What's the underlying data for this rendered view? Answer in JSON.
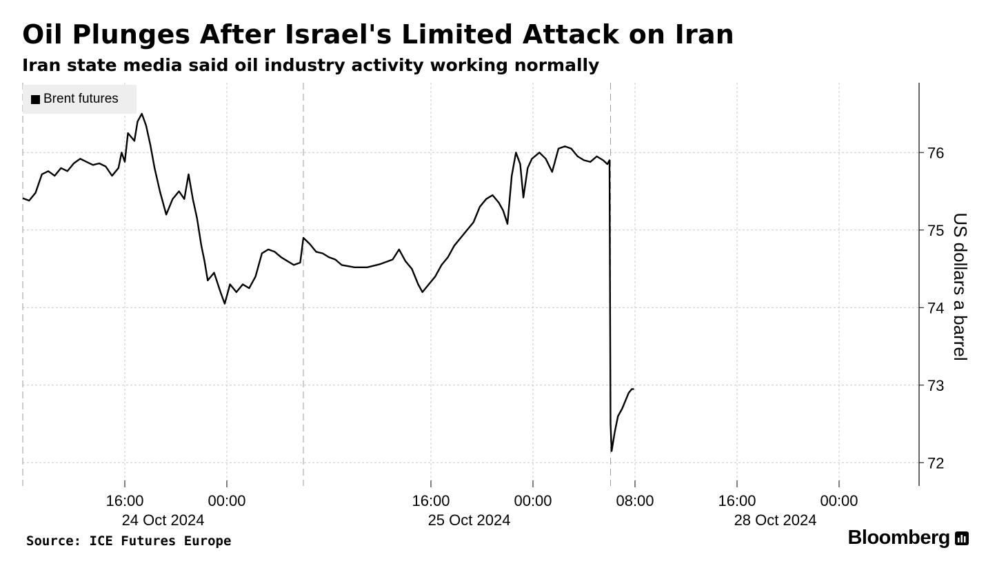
{
  "title": "Oil Plunges After Israel's Limited Attack on Iran",
  "subtitle": "Iran state media said oil industry activity working normally",
  "source": "Source: ICE Futures Europe",
  "brand": "Bloomberg",
  "chart_data": {
    "type": "line",
    "title": "Oil Plunges After Israel's Limited Attack on Iran",
    "subtitle": "Iran state media said oil industry activity working normally",
    "ylabel": "US dollars a barrel",
    "xlabel": "",
    "ylim": [
      71.7,
      76.9
    ],
    "y_axis_side": "right",
    "grid": true,
    "legend_position": "top-left",
    "line_color": "#000000",
    "x_ticks": [
      {
        "time": "2024-10-24 16:00",
        "label": "16:00"
      },
      {
        "time": "2024-10-25 00:00",
        "label": "00:00"
      },
      {
        "time": "2024-10-25 16:00",
        "label": "16:00"
      },
      {
        "time": "2024-10-28 00:00",
        "label": "00:00"
      },
      {
        "time": "2024-10-28 08:00",
        "label": "08:00"
      },
      {
        "time": "2024-10-28 16:00",
        "label": "16:00"
      },
      {
        "time": "2024-10-29 00:00",
        "label": "00:00"
      }
    ],
    "date_labels": [
      {
        "time": "2024-10-24 19:00",
        "label": "24 Oct 2024"
      },
      {
        "time": "2024-10-25 19:00",
        "label": "25 Oct 2024"
      },
      {
        "time": "2024-10-28 19:00",
        "label": "28 Oct 2024"
      }
    ],
    "y_ticks": [
      72,
      73,
      74,
      75,
      76
    ],
    "series": [
      {
        "name": "Brent futures",
        "points": [
          [
            "2024-10-24 08:00",
            75.41
          ],
          [
            "2024-10-24 08:30",
            75.38
          ],
          [
            "2024-10-24 09:00",
            75.48
          ],
          [
            "2024-10-24 09:30",
            75.72
          ],
          [
            "2024-10-24 10:00",
            75.76
          ],
          [
            "2024-10-24 10:30",
            75.7
          ],
          [
            "2024-10-24 11:00",
            75.8
          ],
          [
            "2024-10-24 11:30",
            75.76
          ],
          [
            "2024-10-24 12:00",
            75.86
          ],
          [
            "2024-10-24 12:30",
            75.92
          ],
          [
            "2024-10-24 13:00",
            75.88
          ],
          [
            "2024-10-24 13:30",
            75.84
          ],
          [
            "2024-10-24 14:00",
            75.86
          ],
          [
            "2024-10-24 14:30",
            75.82
          ],
          [
            "2024-10-24 15:00",
            75.7
          ],
          [
            "2024-10-24 15:30",
            75.8
          ],
          [
            "2024-10-24 15:45",
            76.0
          ],
          [
            "2024-10-24 16:00",
            75.88
          ],
          [
            "2024-10-24 16:15",
            76.25
          ],
          [
            "2024-10-24 16:45",
            76.15
          ],
          [
            "2024-10-24 17:00",
            76.4
          ],
          [
            "2024-10-24 17:20",
            76.5
          ],
          [
            "2024-10-24 17:40",
            76.35
          ],
          [
            "2024-10-24 18:00",
            76.1
          ],
          [
            "2024-10-24 18:20",
            75.8
          ],
          [
            "2024-10-24 18:45",
            75.5
          ],
          [
            "2024-10-24 19:15",
            75.2
          ],
          [
            "2024-10-24 19:45",
            75.4
          ],
          [
            "2024-10-24 20:15",
            75.5
          ],
          [
            "2024-10-24 20:40",
            75.4
          ],
          [
            "2024-10-24 21:00",
            75.72
          ],
          [
            "2024-10-24 21:20",
            75.4
          ],
          [
            "2024-10-24 21:40",
            75.15
          ],
          [
            "2024-10-24 22:00",
            74.8
          ],
          [
            "2024-10-24 22:15",
            74.6
          ],
          [
            "2024-10-24 22:30",
            74.35
          ],
          [
            "2024-10-24 23:00",
            74.45
          ],
          [
            "2024-10-24 23:30",
            74.2
          ],
          [
            "2024-10-24 23:50",
            74.05
          ],
          [
            "2024-10-25 00:15",
            74.3
          ],
          [
            "2024-10-25 00:45",
            74.2
          ],
          [
            "2024-10-25 01:15",
            74.3
          ],
          [
            "2024-10-25 01:45",
            74.25
          ],
          [
            "2024-10-25 02:15",
            74.4
          ],
          [
            "2024-10-25 02:45",
            74.7
          ],
          [
            "2024-10-25 03:15",
            74.75
          ],
          [
            "2024-10-25 03:45",
            74.72
          ],
          [
            "2024-10-25 04:15",
            74.65
          ],
          [
            "2024-10-25 04:45",
            74.6
          ],
          [
            "2024-10-25 05:15",
            74.55
          ],
          [
            "2024-10-25 05:45",
            74.58
          ],
          [
            "2024-10-25 06:00",
            74.9
          ],
          [
            "2024-10-25 06:30",
            74.82
          ],
          [
            "2024-10-25 07:00",
            74.72
          ],
          [
            "2024-10-25 07:30",
            74.7
          ],
          [
            "2024-10-25 08:00",
            74.65
          ],
          [
            "2024-10-25 08:30",
            74.62
          ],
          [
            "2024-10-25 09:00",
            74.55
          ],
          [
            "2024-10-25 10:00",
            74.52
          ],
          [
            "2024-10-25 11:00",
            74.52
          ],
          [
            "2024-10-25 12:00",
            74.56
          ],
          [
            "2024-10-25 13:00",
            74.62
          ],
          [
            "2024-10-25 13:30",
            74.75
          ],
          [
            "2024-10-25 14:00",
            74.6
          ],
          [
            "2024-10-25 14:30",
            74.5
          ],
          [
            "2024-10-25 15:00",
            74.3
          ],
          [
            "2024-10-25 15:20",
            74.2
          ],
          [
            "2024-10-25 15:50",
            74.3
          ],
          [
            "2024-10-25 16:20",
            74.4
          ],
          [
            "2024-10-25 16:50",
            74.55
          ],
          [
            "2024-10-25 17:20",
            74.65
          ],
          [
            "2024-10-25 17:50",
            74.8
          ],
          [
            "2024-10-25 18:20",
            74.9
          ],
          [
            "2024-10-25 18:50",
            75.0
          ],
          [
            "2024-10-25 19:20",
            75.1
          ],
          [
            "2024-10-25 19:50",
            75.3
          ],
          [
            "2024-10-25 20:20",
            75.4
          ],
          [
            "2024-10-25 20:50",
            75.45
          ],
          [
            "2024-10-25 21:20",
            75.35
          ],
          [
            "2024-10-25 21:40",
            75.25
          ],
          [
            "2024-10-25 22:00",
            75.08
          ],
          [
            "2024-10-25 22:20",
            75.7
          ],
          [
            "2024-10-25 22:40",
            76.0
          ],
          [
            "2024-10-25 23:00",
            75.85
          ],
          [
            "2024-10-25 23:15",
            75.42
          ],
          [
            "2024-10-25 23:35",
            75.8
          ],
          [
            "2024-10-25 23:55",
            75.92
          ],
          [
            "2024-10-28 00:30",
            76.0
          ],
          [
            "2024-10-28 01:00",
            75.92
          ],
          [
            "2024-10-28 01:30",
            75.75
          ],
          [
            "2024-10-28 02:00",
            76.05
          ],
          [
            "2024-10-28 02:30",
            76.08
          ],
          [
            "2024-10-28 03:00",
            76.05
          ],
          [
            "2024-10-28 03:30",
            75.95
          ],
          [
            "2024-10-28 04:00",
            75.9
          ],
          [
            "2024-10-28 04:30",
            75.88
          ],
          [
            "2024-10-28 05:00",
            75.95
          ],
          [
            "2024-10-28 05:30",
            75.9
          ],
          [
            "2024-10-28 05:50",
            75.85
          ],
          [
            "2024-10-28 06:00",
            75.9
          ],
          [
            "2024-10-28 06:05",
            72.5
          ],
          [
            "2024-10-28 06:10",
            72.15
          ],
          [
            "2024-10-28 06:25",
            72.4
          ],
          [
            "2024-10-28 06:40",
            72.6
          ],
          [
            "2024-10-28 07:00",
            72.7
          ],
          [
            "2024-10-28 07:15",
            72.8
          ],
          [
            "2024-10-28 07:30",
            72.9
          ],
          [
            "2024-10-28 07:45",
            72.95
          ],
          [
            "2024-10-28 07:55",
            72.95
          ]
        ]
      }
    ]
  }
}
